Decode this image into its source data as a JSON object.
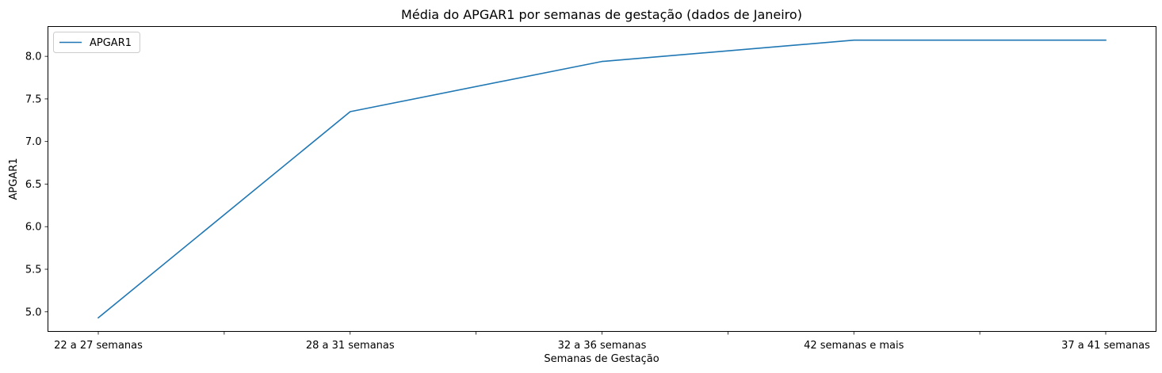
{
  "chart_data": {
    "type": "line",
    "title": "Média do APGAR1 por semanas de gestação (dados de Janeiro)",
    "xlabel": "Semanas de Gestação",
    "ylabel": "APGAR1",
    "categories": [
      "22 a 27 semanas",
      "28 a 31 semanas",
      "32 a 36 semanas",
      "42 semanas e mais",
      "37 a 41 semanas"
    ],
    "series": [
      {
        "name": "APGAR1",
        "color": "#1f77b4",
        "values": [
          4.93,
          7.35,
          7.94,
          8.19,
          8.19
        ]
      }
    ],
    "ylim": [
      4.77,
      8.35
    ],
    "yticks": [
      5.0,
      5.5,
      6.0,
      6.5,
      7.0,
      7.5,
      8.0
    ],
    "ytick_labels": [
      "5.0",
      "5.5",
      "6.0",
      "6.5",
      "7.0",
      "7.5",
      "8.0"
    ],
    "grid": false,
    "legend_position": "top-left"
  }
}
